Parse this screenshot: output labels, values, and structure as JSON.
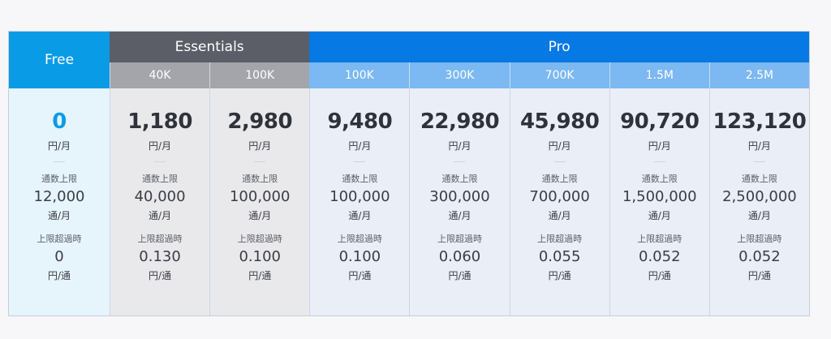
{
  "headers": {
    "free": "Free",
    "essentials": "Essentials",
    "pro": "Pro"
  },
  "plans": [
    {
      "group": "free",
      "tier": "",
      "price": "0",
      "price_unit": "円/月",
      "included_label": "通数上限",
      "included": "12,000",
      "included_unit": "通/月",
      "overage_label": "上限超過時",
      "overage": "0",
      "overage_unit": "円/通"
    },
    {
      "group": "ess",
      "tier": "40K",
      "price": "1,180",
      "price_unit": "円/月",
      "included_label": "通数上限",
      "included": "40,000",
      "included_unit": "通/月",
      "overage_label": "上限超過時",
      "overage": "0.130",
      "overage_unit": "円/通"
    },
    {
      "group": "ess",
      "tier": "100K",
      "price": "2,980",
      "price_unit": "円/月",
      "included_label": "通数上限",
      "included": "100,000",
      "included_unit": "通/月",
      "overage_label": "上限超過時",
      "overage": "0.100",
      "overage_unit": "円/通"
    },
    {
      "group": "pro",
      "tier": "100K",
      "price": "9,480",
      "price_unit": "円/月",
      "included_label": "通数上限",
      "included": "100,000",
      "included_unit": "通/月",
      "overage_label": "上限超過時",
      "overage": "0.100",
      "overage_unit": "円/通"
    },
    {
      "group": "pro",
      "tier": "300K",
      "price": "22,980",
      "price_unit": "円/月",
      "included_label": "通数上限",
      "included": "300,000",
      "included_unit": "通/月",
      "overage_label": "上限超過時",
      "overage": "0.060",
      "overage_unit": "円/通"
    },
    {
      "group": "pro",
      "tier": "700K",
      "price": "45,980",
      "price_unit": "円/月",
      "included_label": "通数上限",
      "included": "700,000",
      "included_unit": "通/月",
      "overage_label": "上限超過時",
      "overage": "0.055",
      "overage_unit": "円/通"
    },
    {
      "group": "pro",
      "tier": "1.5M",
      "price": "90,720",
      "price_unit": "円/月",
      "included_label": "通数上限",
      "included": "1,500,000",
      "included_unit": "通/月",
      "overage_label": "上限超過時",
      "overage": "0.052",
      "overage_unit": "円/通"
    },
    {
      "group": "pro",
      "tier": "2.5M",
      "price": "123,120",
      "price_unit": "円/月",
      "included_label": "通数上限",
      "included": "2,500,000",
      "included_unit": "通/月",
      "overage_label": "上限超過時",
      "overage": "0.052",
      "overage_unit": "円/通"
    }
  ],
  "colors": {
    "free_accent": "#0a9be6",
    "essentials": "#5b5e67",
    "pro": "#0779e4"
  }
}
